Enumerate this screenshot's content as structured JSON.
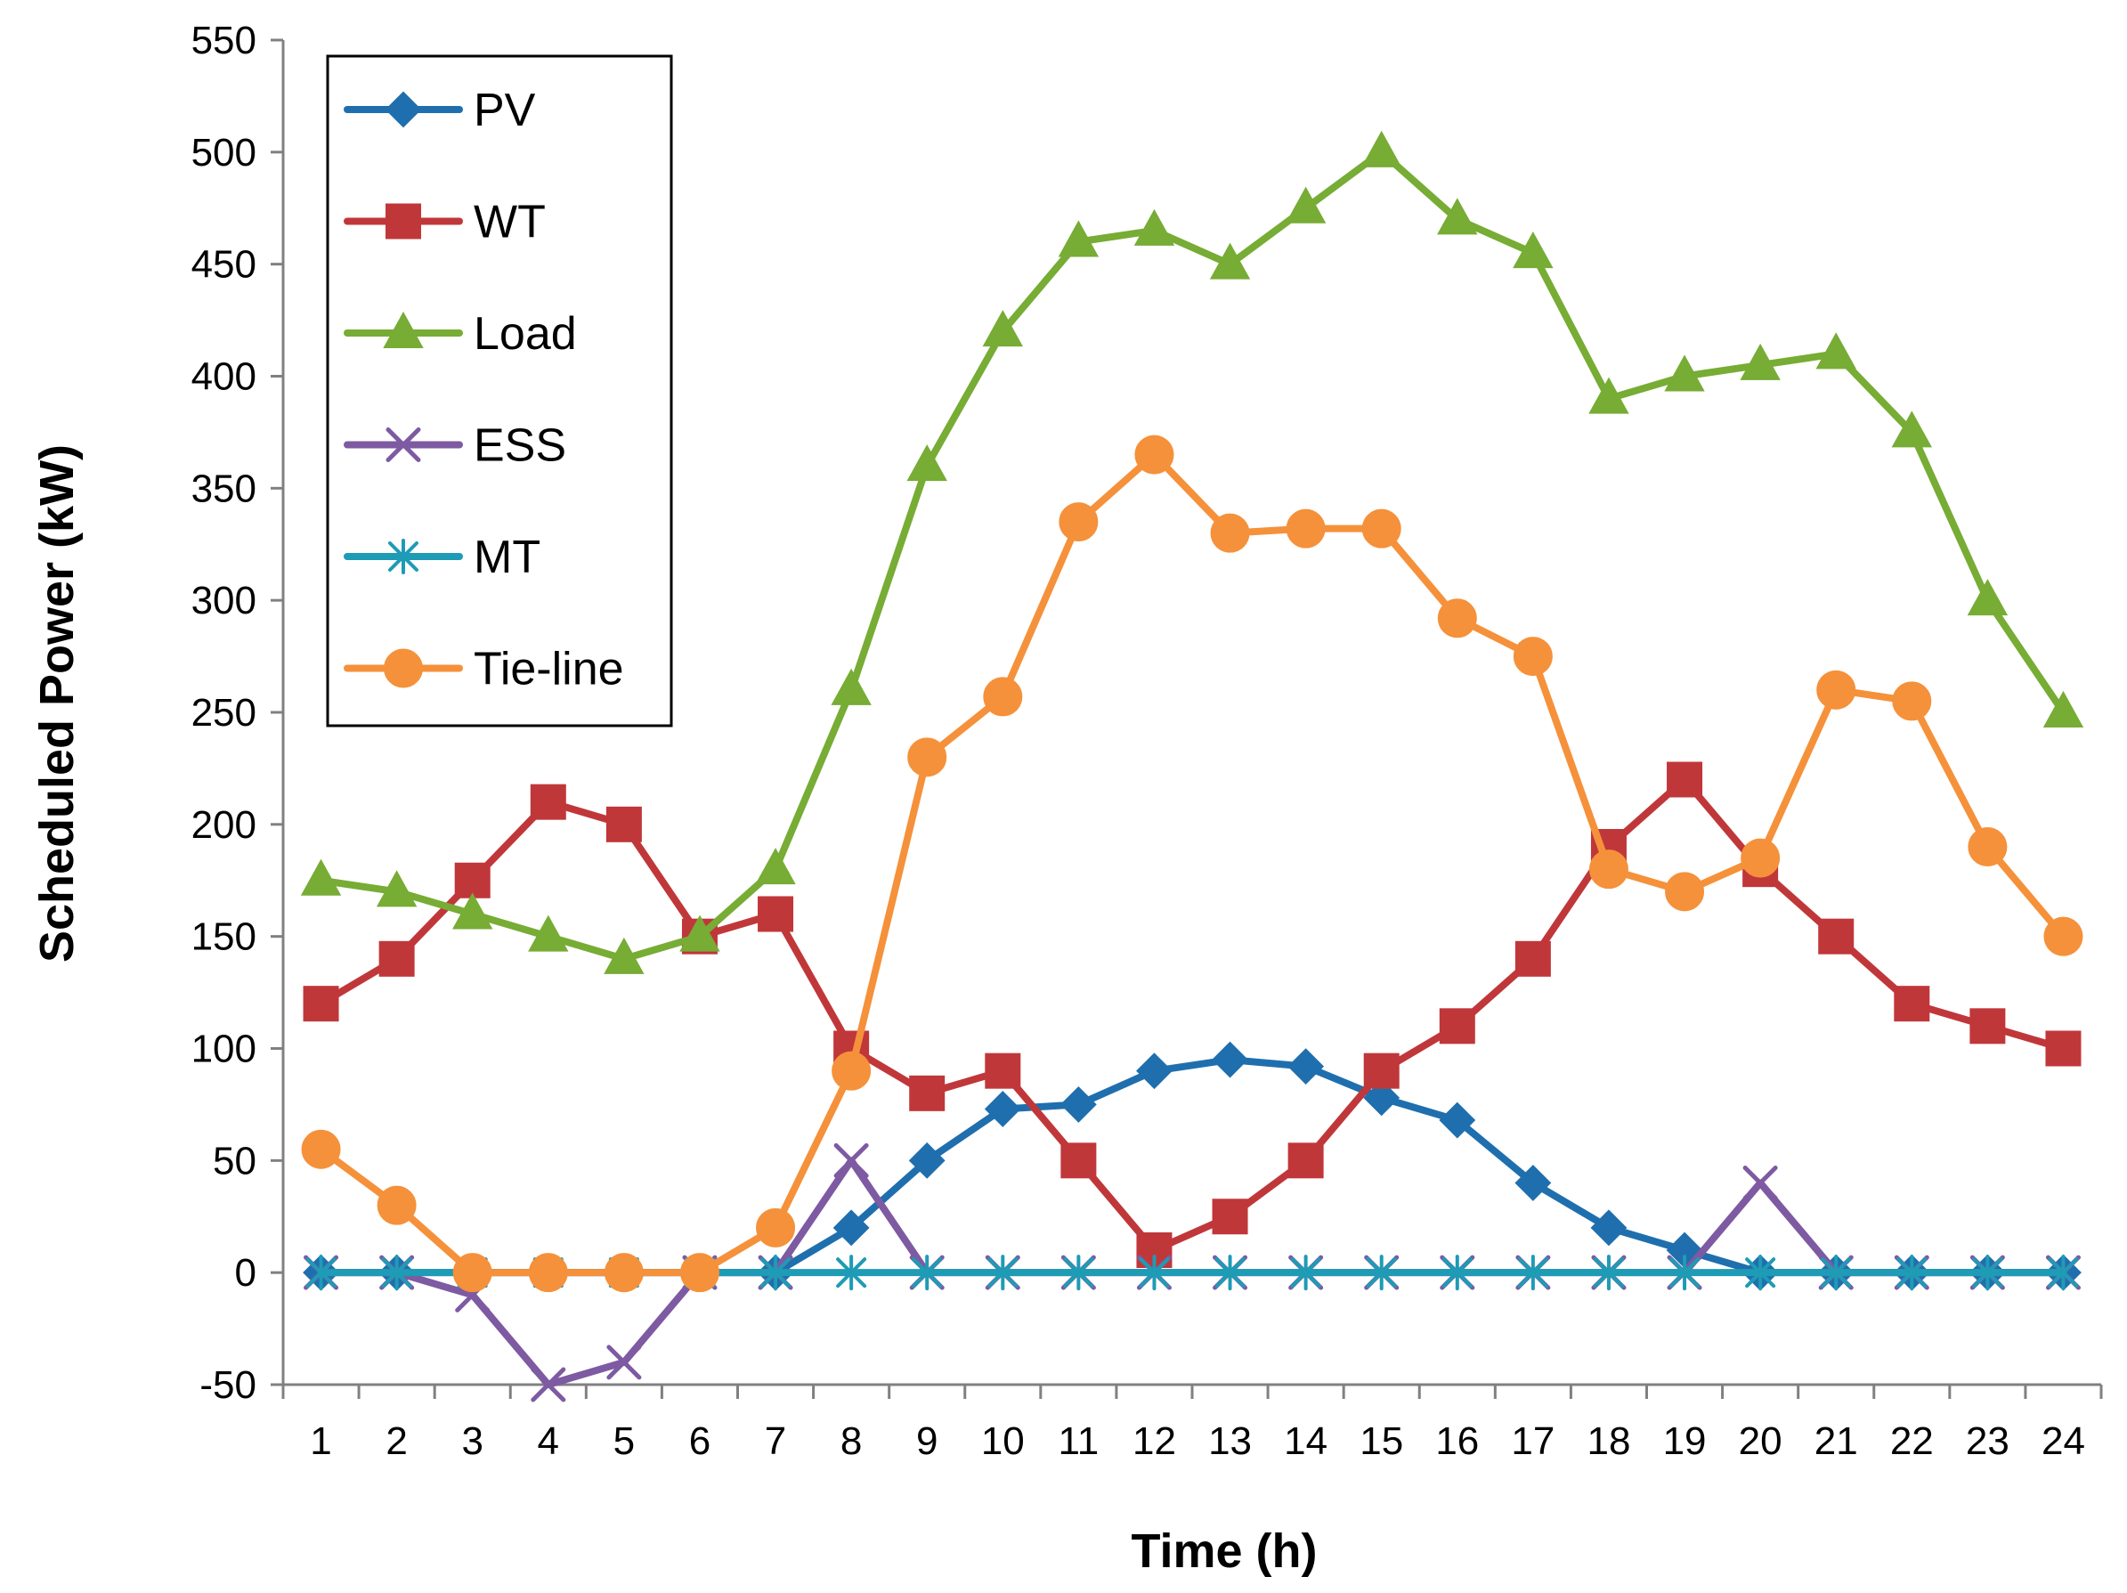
{
  "chart_data": {
    "type": "line",
    "title": "",
    "xlabel": "Time (h)",
    "ylabel": "Scheduled Power (kW)",
    "ylim": [
      -50,
      550
    ],
    "yticks": [
      -50,
      0,
      50,
      100,
      150,
      200,
      250,
      300,
      350,
      400,
      450,
      500,
      550
    ],
    "categories": [
      "1",
      "2",
      "3",
      "4",
      "5",
      "6",
      "7",
      "8",
      "9",
      "10",
      "11",
      "12",
      "13",
      "14",
      "15",
      "16",
      "17",
      "18",
      "19",
      "20",
      "21",
      "22",
      "23",
      "24"
    ],
    "legend_position": "top-left",
    "grid": false,
    "series": [
      {
        "name": "PV",
        "color": "#1F6FAE",
        "marker": "diamond",
        "values": [
          0,
          0,
          0,
          0,
          0,
          0,
          0,
          20,
          50,
          73,
          75,
          90,
          95,
          92,
          78,
          68,
          40,
          20,
          10,
          0,
          0,
          0,
          0,
          0
        ]
      },
      {
        "name": "WT",
        "color": "#C0373A",
        "marker": "square",
        "values": [
          120,
          140,
          175,
          210,
          200,
          150,
          160,
          100,
          80,
          90,
          50,
          10,
          25,
          50,
          90,
          110,
          140,
          190,
          220,
          180,
          150,
          120,
          110,
          100
        ]
      },
      {
        "name": "Load",
        "color": "#77AC35",
        "marker": "triangle",
        "values": [
          175,
          170,
          160,
          150,
          140,
          150,
          180,
          260,
          360,
          420,
          460,
          465,
          450,
          475,
          500,
          470,
          455,
          390,
          400,
          405,
          410,
          375,
          300,
          250
        ]
      },
      {
        "name": "ESS",
        "color": "#7E5AA2",
        "marker": "x",
        "values": [
          0,
          0,
          -10,
          -50,
          -40,
          0,
          0,
          50,
          0,
          0,
          0,
          0,
          0,
          0,
          0,
          0,
          0,
          0,
          0,
          40,
          0,
          0,
          0,
          0
        ]
      },
      {
        "name": "MT",
        "color": "#1E9BB5",
        "marker": "asterisk",
        "values": [
          0,
          0,
          0,
          0,
          0,
          0,
          0,
          0,
          0,
          0,
          0,
          0,
          0,
          0,
          0,
          0,
          0,
          0,
          0,
          0,
          0,
          0,
          0,
          0
        ]
      },
      {
        "name": "Tie-line",
        "color": "#F5913A",
        "marker": "circle",
        "values": [
          55,
          30,
          0,
          0,
          0,
          0,
          20,
          90,
          230,
          257,
          335,
          365,
          330,
          332,
          332,
          292,
          275,
          180,
          170,
          185,
          260,
          255,
          190,
          150
        ]
      }
    ]
  }
}
